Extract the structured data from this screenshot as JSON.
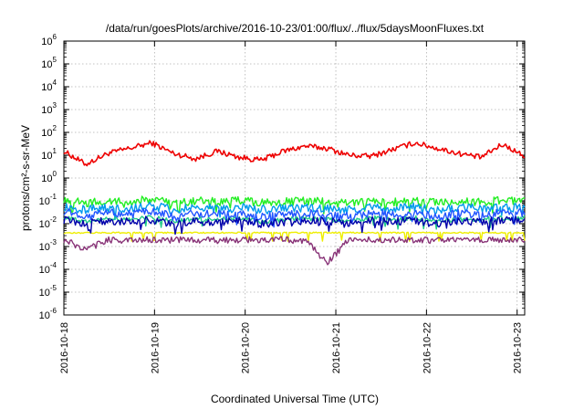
{
  "chart_data": {
    "type": "line",
    "title": "/data/run/goesPlots/archive/2016-10-23/01:00/flux/../flux/5daysMoonFluxes.txt",
    "xlabel": "Coordinated Universal Time (UTC)",
    "ylabel": "protons/cm²-s-sr-MeV",
    "yscale": "log",
    "ylim": [
      1e-06,
      1000000.0
    ],
    "xlim": [
      "2016-10-18 00:00",
      "2016-10-23 02:00"
    ],
    "grid": true,
    "x_tick_labels": [
      "2016-10-18",
      "2016-10-19",
      "2016-10-20",
      "2016-10-21",
      "2016-10-22",
      "2016-10-23"
    ],
    "y_tick_labels": [
      {
        "base": "10",
        "exp": "-6"
      },
      {
        "base": "10",
        "exp": "-5"
      },
      {
        "base": "10",
        "exp": "-4"
      },
      {
        "base": "10",
        "exp": "-3"
      },
      {
        "base": "10",
        "exp": "-2"
      },
      {
        "base": "10",
        "exp": "-1"
      },
      {
        "base": "10",
        "exp": "0"
      },
      {
        "base": "10",
        "exp": "1"
      },
      {
        "base": "10",
        "exp": "2"
      },
      {
        "base": "10",
        "exp": "3"
      },
      {
        "base": "10",
        "exp": "4"
      },
      {
        "base": "10",
        "exp": "5"
      },
      {
        "base": "10",
        "exp": "6"
      }
    ],
    "x_days": [
      "2016-10-18",
      "2016-10-18.25",
      "2016-10-18.5",
      "2016-10-18.75",
      "2016-10-19",
      "2016-10-19.25",
      "2016-10-19.5",
      "2016-10-19.75",
      "2016-10-20",
      "2016-10-20.25",
      "2016-10-20.5",
      "2016-10-20.75",
      "2016-10-21",
      "2016-10-21.25",
      "2016-10-21.5",
      "2016-10-21.75",
      "2016-10-22",
      "2016-10-22.25",
      "2016-10-22.5",
      "2016-10-22.75",
      "2016-10-23",
      "2016-10-23.08"
    ],
    "series": [
      {
        "color": "#ee0000",
        "values": [
          15,
          4,
          12,
          20,
          35,
          12,
          7,
          15,
          8,
          6,
          15,
          25,
          20,
          10,
          9,
          18,
          35,
          20,
          12,
          8,
          30,
          9
        ]
      },
      {
        "color": "#22ee22",
        "values": [
          0.12,
          0.08,
          0.1,
          0.09,
          0.12,
          0.08,
          0.1,
          0.09,
          0.11,
          0.08,
          0.09,
          0.1,
          0.09,
          0.08,
          0.1,
          0.09,
          0.11,
          0.08,
          0.1,
          0.09,
          0.11,
          0.1
        ]
      },
      {
        "color": "#0099ee",
        "values": [
          0.06,
          0.04,
          0.05,
          0.045,
          0.06,
          0.04,
          0.05,
          0.045,
          0.05,
          0.04,
          0.045,
          0.05,
          0.045,
          0.04,
          0.05,
          0.045,
          0.055,
          0.04,
          0.05,
          0.045,
          0.05,
          0.05
        ]
      },
      {
        "color": "#2255ff",
        "values": [
          0.035,
          0.02,
          0.03,
          0.025,
          0.035,
          0.02,
          0.028,
          0.025,
          0.03,
          0.02,
          0.025,
          0.03,
          0.025,
          0.02,
          0.03,
          0.025,
          0.03,
          0.02,
          0.028,
          0.025,
          0.03,
          0.03
        ]
      },
      {
        "color": "#22cc88",
        "values": [
          0.02,
          0.012,
          0.018,
          0.015,
          0.02,
          0.012,
          0.016,
          0.015,
          0.018,
          0.012,
          0.015,
          0.018,
          0.015,
          0.012,
          0.018,
          0.015,
          0.018,
          0.012,
          0.016,
          0.015,
          0.018,
          0.018
        ]
      },
      {
        "color": "#0000aa",
        "values": [
          0.015,
          0.01,
          0.014,
          0.012,
          0.015,
          0.01,
          0.013,
          0.012,
          0.014,
          0.01,
          0.012,
          0.014,
          0.012,
          0.01,
          0.014,
          0.012,
          0.014,
          0.01,
          0.013,
          0.012,
          0.014,
          0.014
        ]
      },
      {
        "color": "#eeee00",
        "values": [
          0.004,
          0.004,
          0.004,
          0.004,
          0.004,
          0.004,
          0.004,
          0.004,
          0.004,
          0.004,
          0.004,
          0.004,
          0.004,
          0.004,
          0.004,
          0.004,
          0.004,
          0.004,
          0.004,
          0.004,
          0.004,
          0.004
        ]
      },
      {
        "color": "#883377",
        "values": [
          0.002,
          0.0007,
          0.002,
          0.0018,
          0.002,
          0.0019,
          0.002,
          0.0018,
          0.002,
          0.0019,
          0.002,
          0.0018,
          0.0002,
          0.002,
          0.0019,
          0.002,
          0.002,
          0.0018,
          0.0019,
          0.002,
          0.0019,
          0.002
        ]
      }
    ]
  }
}
